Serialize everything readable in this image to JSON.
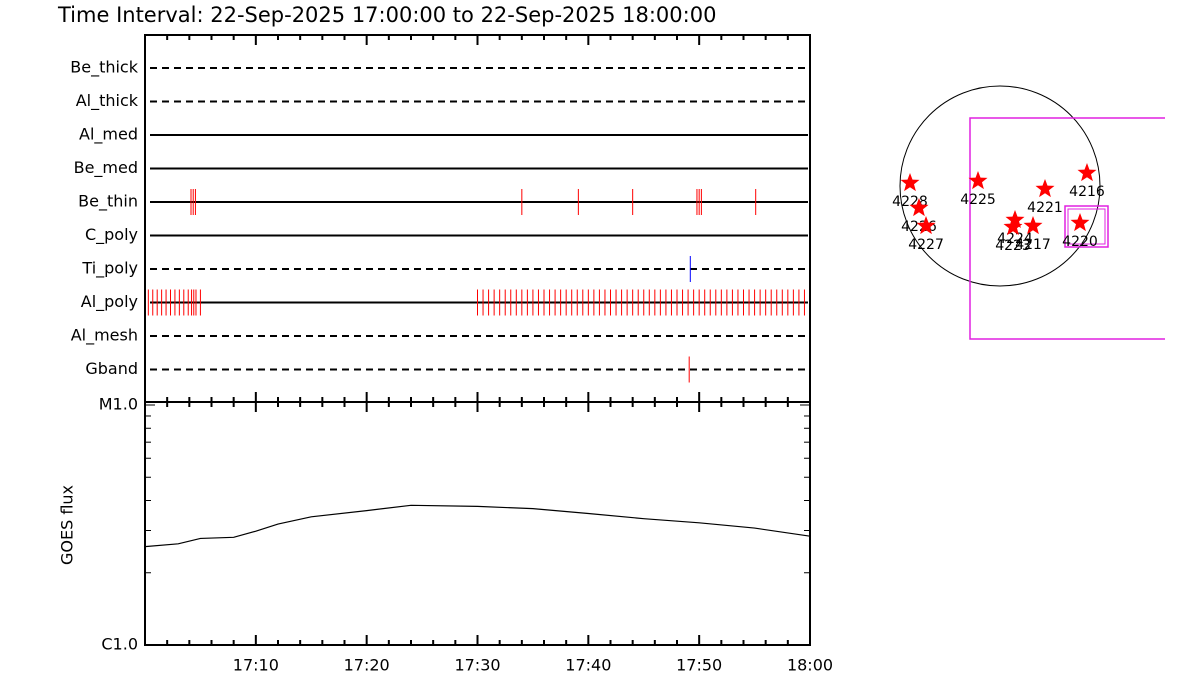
{
  "chart_data": [
    {
      "type": "event",
      "title": "Time Interval: 22-Sep-2025 17:00:00 to 22-Sep-2025 18:00:00",
      "xlim": [
        0,
        60
      ],
      "rows": [
        {
          "name": "Be_thick",
          "style": "dashed",
          "color": "#ff0000",
          "events": []
        },
        {
          "name": "Al_thick",
          "style": "dashed",
          "color": "#ff0000",
          "events": []
        },
        {
          "name": "Al_med",
          "style": "solid",
          "color": "#ff0000",
          "events": []
        },
        {
          "name": "Be_med",
          "style": "solid",
          "color": "#ff0000",
          "events": []
        },
        {
          "name": "Be_thin",
          "style": "solid",
          "color": "#ff0000",
          "events": [
            4.15,
            4.35,
            4.55,
            34.0,
            39.1,
            44.0,
            49.8,
            50.0,
            50.2,
            55.1
          ]
        },
        {
          "name": "C_poly",
          "style": "solid",
          "color": "#ff0000",
          "events": []
        },
        {
          "name": "Ti_poly",
          "style": "dashed",
          "color": "#0000ff",
          "events": [
            49.2
          ]
        },
        {
          "name": "Al_poly",
          "style": "solid",
          "color": "#ff0000",
          "events": [
            0.3,
            0.7,
            1.1,
            1.5,
            1.9,
            2.3,
            2.7,
            3.1,
            3.5,
            3.9,
            4.2,
            4.4,
            4.6,
            5.0,
            30.0,
            30.5,
            31.0,
            31.5,
            32.0,
            32.5,
            33.0,
            33.5,
            34.0,
            34.5,
            35.0,
            35.5,
            36.0,
            36.5,
            37.0,
            37.5,
            38.0,
            38.5,
            39.0,
            39.5,
            40.0,
            40.5,
            41.0,
            41.5,
            42.0,
            42.5,
            43.0,
            43.5,
            44.0,
            44.5,
            45.0,
            45.5,
            46.0,
            46.5,
            47.0,
            47.5,
            48.0,
            48.5,
            49.0,
            49.5,
            50.0,
            50.5,
            51.0,
            51.5,
            52.0,
            52.5,
            53.0,
            53.5,
            54.0,
            54.5,
            55.0,
            55.5,
            56.0,
            56.5,
            57.0,
            57.5,
            58.0,
            58.5,
            59.0,
            59.5
          ]
        },
        {
          "name": "Al_mesh",
          "style": "dashed",
          "color": "#ff0000",
          "events": []
        },
        {
          "name": "Gband",
          "style": "dashed",
          "color": "#ff0000",
          "events": [
            49.1
          ]
        }
      ]
    },
    {
      "type": "line",
      "y_label": "GOES flux",
      "log_y": true,
      "color": "#000000",
      "x": [
        0,
        3,
        5,
        8,
        10,
        12,
        15,
        20,
        24,
        30,
        35,
        40,
        45,
        50,
        55,
        60
      ],
      "values": [
        2.57e-06,
        2.64e-06,
        2.78e-06,
        2.81e-06,
        2.98e-06,
        3.19e-06,
        3.42e-06,
        3.63e-06,
        3.82e-06,
        3.78e-06,
        3.7e-06,
        3.53e-06,
        3.36e-06,
        3.23e-06,
        3.07e-06,
        2.84e-06
      ],
      "xlim": [
        0,
        60
      ],
      "xticks": [
        {
          "value": 10,
          "label": "17:10"
        },
        {
          "value": 20,
          "label": "17:20"
        },
        {
          "value": 30,
          "label": "17:30"
        },
        {
          "value": 40,
          "label": "17:40"
        },
        {
          "value": 50,
          "label": "17:50"
        },
        {
          "value": 60,
          "label": "18:00"
        }
      ],
      "xminor": [
        2,
        4,
        6,
        8,
        12,
        14,
        16,
        18,
        22,
        24,
        26,
        28,
        32,
        34,
        36,
        38,
        42,
        44,
        46,
        48,
        52,
        54,
        56,
        58
      ],
      "ylim": [
        1e-06,
        1e-05
      ],
      "yticks": [
        {
          "value": 1e-06,
          "label": "C1.0"
        },
        {
          "value": 1e-05,
          "label": "M1.0"
        }
      ],
      "yminor": [
        2e-06,
        3e-06,
        4e-06,
        5e-06,
        6e-06,
        7e-06,
        8e-06,
        9e-06
      ]
    },
    {
      "type": "scatter",
      "color": "#ff0000",
      "labels": [
        "4228",
        "4226",
        "4227",
        "4225",
        "4221",
        "4216",
        "4224",
        "4223",
        "4217",
        "4220"
      ],
      "x": [
        -864,
        -778,
        -710,
        -211,
        432,
        835,
        144,
        125,
        317,
        768
      ],
      "values": [
        29,
        -211,
        -384,
        48,
        -29,
        125,
        -326,
        -394,
        -384,
        -355
      ]
    }
  ]
}
